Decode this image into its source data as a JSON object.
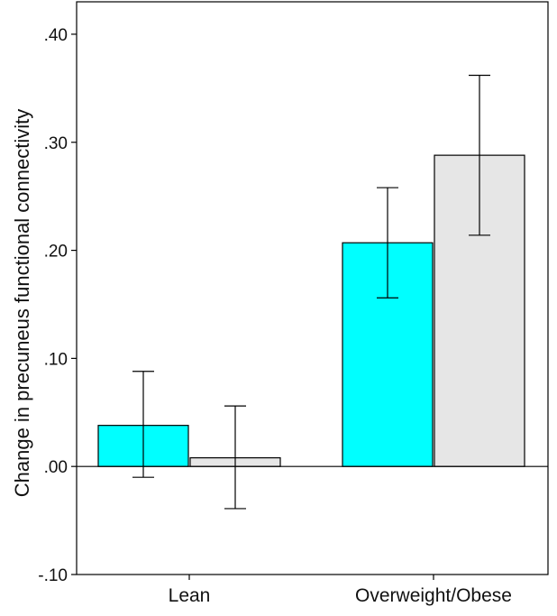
{
  "chart_data": {
    "type": "bar",
    "title": "",
    "xlabel": "",
    "ylabel": "Change in precuneus functional connectivity",
    "categories": [
      "Lean",
      "Overweight/Obese"
    ],
    "series": [
      {
        "color": "#00ffff",
        "values": [
          0.038,
          0.207
        ],
        "error_low": [
          -0.01,
          0.156
        ],
        "error_high": [
          0.088,
          0.258
        ]
      },
      {
        "color": "#e6e6e6",
        "values": [
          0.008,
          0.288
        ],
        "error_low": [
          -0.039,
          0.214
        ],
        "error_high": [
          0.056,
          0.362
        ]
      }
    ],
    "ylim": [
      -0.1,
      0.43
    ],
    "yticks": [
      -0.1,
      0.0,
      0.1,
      0.2,
      0.3,
      0.4
    ],
    "ytick_labels": [
      "-.10",
      ".00",
      ".10",
      ".20",
      ".30",
      ".40"
    ],
    "zero_line": true,
    "grid": false,
    "legend": "none"
  }
}
